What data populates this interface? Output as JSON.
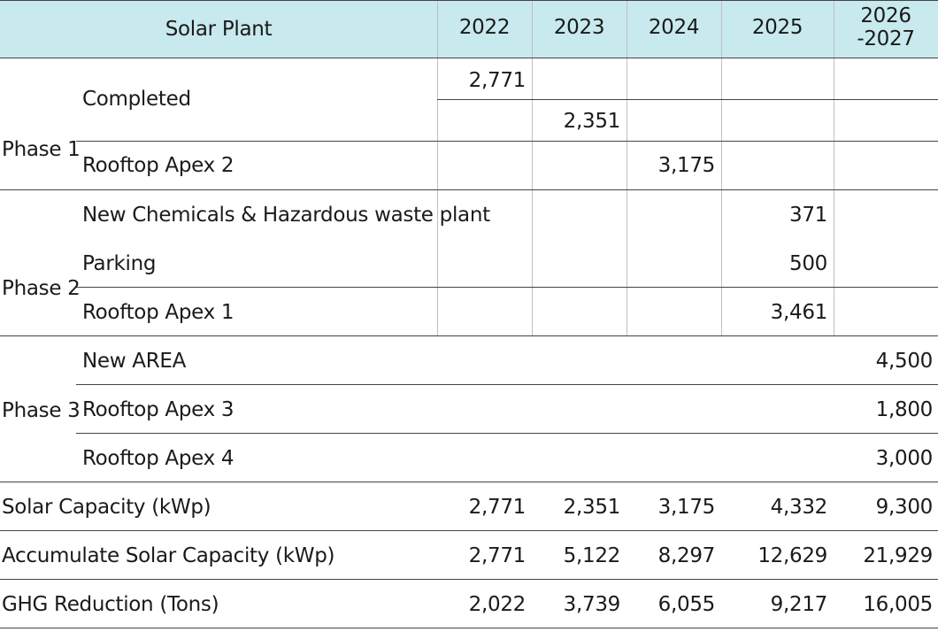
{
  "header": {
    "title": "Solar Plant",
    "years": [
      "2022",
      "2023",
      "2024",
      "2025"
    ],
    "last_year_top": "2026",
    "last_year_bottom": "-2027"
  },
  "phases": [
    {
      "label": "Phase 1"
    },
    {
      "label": "Phase 2"
    },
    {
      "label": "Phase 3"
    }
  ],
  "rows": {
    "completed": "Completed",
    "completed_2022": "2,771",
    "completed_2023": "2,351",
    "rooftop_apex_2": "Rooftop Apex 2",
    "rooftop_apex_2_2024": "3,175",
    "new_chem": "New Chemicals & Hazardous waste plant",
    "new_chem_2025": "371",
    "parking": "Parking",
    "parking_2025": "500",
    "rooftop_apex_1": "Rooftop Apex 1",
    "rooftop_apex_1_2025": "3,461",
    "new_area": "New AREA",
    "new_area_2026": "4,500",
    "rooftop_apex_3": "Rooftop Apex 3",
    "rooftop_apex_3_2026": "1,800",
    "rooftop_apex_4": "Rooftop Apex 4",
    "rooftop_apex_4_2026": "3,000"
  },
  "summary": [
    {
      "label": "Solar Capacity (kWp)",
      "values": [
        "2,771",
        "2,351",
        "3,175",
        "4,332",
        "9,300"
      ]
    },
    {
      "label": "Accumulate Solar Capacity (kWp)",
      "values": [
        "2,771",
        "5,122",
        "8,297",
        "12,629",
        "21,929"
      ]
    },
    {
      "label": "GHG Reduction (Tons)",
      "values": [
        "2,022",
        "3,739",
        "6,055",
        "9,217",
        "16,005"
      ]
    }
  ]
}
